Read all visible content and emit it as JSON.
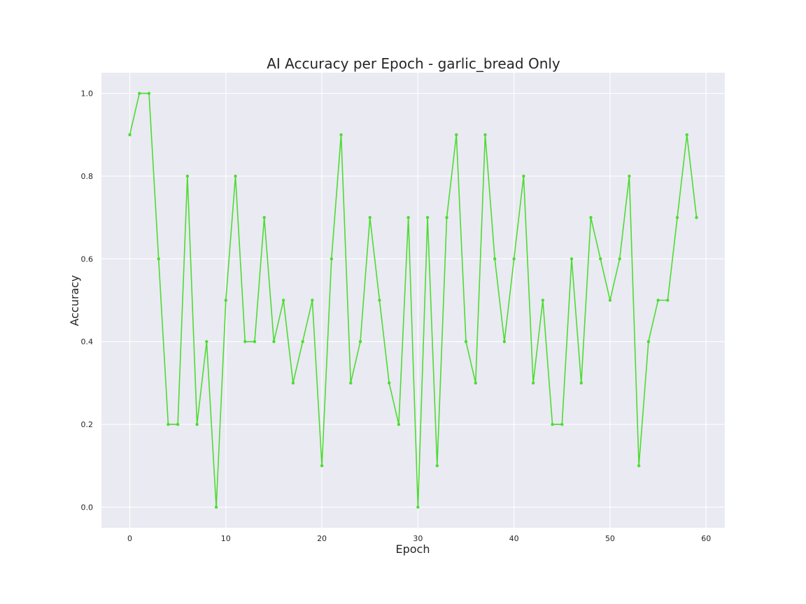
{
  "chart_data": {
    "type": "line",
    "title": "AI Accuracy per Epoch - garlic_bread Only",
    "xlabel": "Epoch",
    "ylabel": "Accuracy",
    "xlim": [
      -2.95,
      61.95
    ],
    "ylim": [
      -0.05,
      1.05
    ],
    "xticks": [
      0,
      10,
      20,
      30,
      40,
      50,
      60
    ],
    "yticks": [
      0.0,
      0.2,
      0.4,
      0.6,
      0.8,
      1.0
    ],
    "xtick_labels": [
      "0",
      "10",
      "20",
      "30",
      "40",
      "50",
      "60"
    ],
    "ytick_labels": [
      "0.0",
      "0.2",
      "0.4",
      "0.6",
      "0.8",
      "1.0"
    ],
    "grid": true,
    "background_color": "#eaeaf2",
    "series": [
      {
        "color": "#4cdc32",
        "marker": "circle",
        "x": [
          0,
          1,
          2,
          3,
          4,
          5,
          6,
          7,
          8,
          9,
          10,
          11,
          12,
          13,
          14,
          15,
          16,
          17,
          18,
          19,
          20,
          21,
          22,
          23,
          24,
          25,
          26,
          27,
          28,
          29,
          30,
          31,
          32,
          33,
          34,
          35,
          36,
          37,
          38,
          39,
          40,
          41,
          42,
          43,
          44,
          45,
          46,
          47,
          48,
          49,
          50,
          51,
          52,
          53,
          54,
          55,
          56,
          57,
          58,
          59
        ],
        "values": [
          0.9,
          1.0,
          1.0,
          0.6,
          0.2,
          0.2,
          0.8,
          0.2,
          0.4,
          0.0,
          0.5,
          0.8,
          0.4,
          0.4,
          0.7,
          0.4,
          0.5,
          0.3,
          0.4,
          0.5,
          0.1,
          0.6,
          0.9,
          0.3,
          0.4,
          0.7,
          0.5,
          0.3,
          0.2,
          0.7,
          0.0,
          0.7,
          0.1,
          0.7,
          0.9,
          0.4,
          0.3,
          0.9,
          0.6,
          0.4,
          0.6,
          0.8,
          0.3,
          0.5,
          0.2,
          0.2,
          0.6,
          0.3,
          0.7,
          0.6,
          0.5,
          0.6,
          0.8,
          0.1,
          0.4,
          0.5,
          0.5,
          0.7,
          0.9,
          0.7
        ]
      }
    ]
  }
}
